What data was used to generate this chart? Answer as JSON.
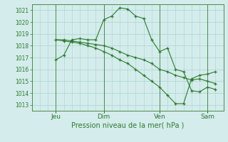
{
  "bg_color": "#d4ecec",
  "grid_color": "#a8d4cc",
  "line_color": "#2d7a2d",
  "marker_color": "#2d7a2d",
  "axis_label_color": "#2d7a2d",
  "tick_label_color": "#2d7a2d",
  "border_color": "#5aaa5a",
  "xlabel": "Pression niveau de la mer( hPa )",
  "ylim": [
    1012.5,
    1021.5
  ],
  "yticks": [
    1013,
    1014,
    1015,
    1016,
    1017,
    1018,
    1019,
    1020,
    1021
  ],
  "xlim": [
    -0.5,
    11.5
  ],
  "day_positions": [
    1.0,
    4.0,
    7.5,
    10.5
  ],
  "day_labels": [
    "Jeu",
    "Dim",
    "Ven",
    "Sam"
  ],
  "vline_positions": [
    1.0,
    4.0,
    7.5,
    10.5
  ],
  "series1_x": [
    1.0,
    1.5,
    2.0,
    2.5,
    3.0,
    3.5,
    4.0,
    4.5,
    5.0,
    5.5,
    6.0,
    6.5,
    7.0,
    7.5,
    8.0,
    8.5,
    9.0,
    9.5,
    10.0,
    10.5,
    11.0
  ],
  "series1_y": [
    1016.8,
    1017.2,
    1018.5,
    1018.6,
    1018.5,
    1018.5,
    1020.2,
    1020.5,
    1021.2,
    1021.1,
    1020.5,
    1020.3,
    1018.5,
    1017.5,
    1017.8,
    1016.0,
    1015.8,
    1014.2,
    1014.1,
    1014.5,
    1014.3
  ],
  "series2_x": [
    1.0,
    1.5,
    2.0,
    2.5,
    3.0,
    3.5,
    4.0,
    4.5,
    5.0,
    5.5,
    6.0,
    6.5,
    7.0,
    7.5,
    8.0,
    8.5,
    9.0,
    9.5,
    10.0,
    10.5,
    11.0
  ],
  "series2_y": [
    1018.5,
    1018.5,
    1018.4,
    1018.3,
    1018.2,
    1018.1,
    1018.0,
    1017.8,
    1017.5,
    1017.2,
    1017.0,
    1016.8,
    1016.5,
    1016.0,
    1015.8,
    1015.5,
    1015.3,
    1015.1,
    1015.2,
    1015.0,
    1014.8
  ],
  "series3_x": [
    1.0,
    1.5,
    2.0,
    2.5,
    3.0,
    3.5,
    4.0,
    4.5,
    5.0,
    5.5,
    6.0,
    6.5,
    7.0,
    7.5,
    8.0,
    8.5,
    9.0,
    9.5,
    10.0,
    10.5,
    11.0
  ],
  "series3_y": [
    1018.5,
    1018.4,
    1018.3,
    1018.2,
    1018.0,
    1017.8,
    1017.5,
    1017.2,
    1016.8,
    1016.5,
    1016.0,
    1015.5,
    1015.0,
    1014.5,
    1013.8,
    1013.1,
    1013.1,
    1015.2,
    1015.5,
    1015.6,
    1015.8
  ]
}
